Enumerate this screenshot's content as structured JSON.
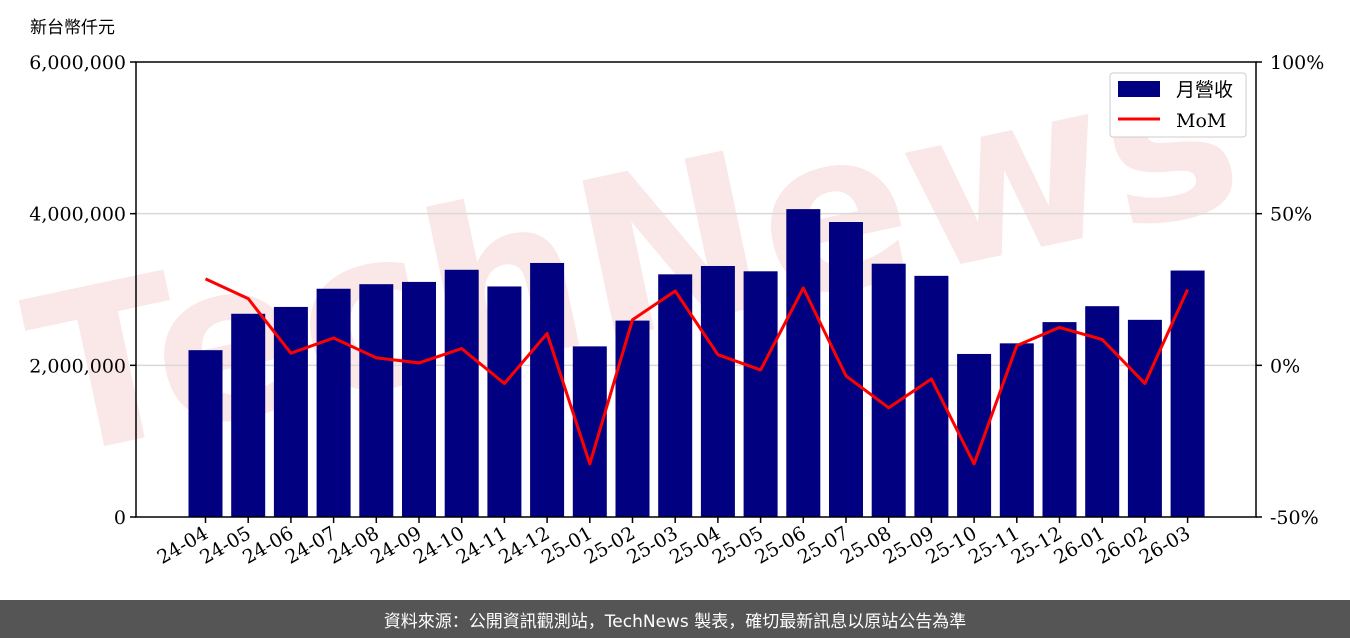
{
  "chart_data": {
    "type": "bar",
    "y_unit_label": "新台幣仟元",
    "categories": [
      "24-04",
      "24-05",
      "24-06",
      "24-07",
      "24-08",
      "24-09",
      "24-10",
      "24-11",
      "24-12",
      "25-01",
      "25-02",
      "25-03",
      "25-04",
      "25-05",
      "25-06",
      "25-07",
      "25-08",
      "25-09",
      "25-10",
      "25-11",
      "25-12",
      "26-01",
      "26-02",
      "26-03"
    ],
    "series": [
      {
        "name": "月營收",
        "axis": "left",
        "type": "bar",
        "color": "#000080",
        "values": [
          2200000,
          2680000,
          2770000,
          3010000,
          3070000,
          3100000,
          3260000,
          3040000,
          3350000,
          2250000,
          2590000,
          3200000,
          3310000,
          3240000,
          4060000,
          3890000,
          3340000,
          3180000,
          2150000,
          2290000,
          2570000,
          2780000,
          2600000,
          3250000
        ]
      },
      {
        "name": "MoM",
        "axis": "right",
        "type": "line",
        "color": "#ff0000",
        "values": [
          28.5,
          22.0,
          4.0,
          9.0,
          2.5,
          0.8,
          5.5,
          -6.0,
          10.5,
          -32.5,
          15.0,
          24.5,
          3.5,
          -1.5,
          25.5,
          -3.5,
          -14.0,
          -4.5,
          -32.5,
          6.5,
          12.5,
          8.5,
          -6.0,
          25.0
        ]
      }
    ],
    "y_left": {
      "ylim": [
        0,
        6000000
      ],
      "ticks": [
        0,
        2000000,
        4000000,
        6000000
      ],
      "tick_labels": [
        "0",
        "2,000,000",
        "4,000,000",
        "6,000,000"
      ]
    },
    "y_right": {
      "ylim": [
        -50,
        100
      ],
      "ticks": [
        -50,
        0,
        50,
        100
      ],
      "tick_labels": [
        "-50%",
        "0%",
        "50%",
        "100%"
      ]
    },
    "grid": "horizontal",
    "legend": {
      "position": "top-right",
      "entries": [
        "月營收",
        "MoM"
      ]
    }
  },
  "watermark": "TechNews",
  "footer": {
    "text": "資料來源：公開資訊觀測站，TechNews 製表，確切最新訊息以原站公告為準"
  },
  "colors": {
    "bar": "#000080",
    "line": "#ff0000",
    "footer_bg": "#555555"
  }
}
